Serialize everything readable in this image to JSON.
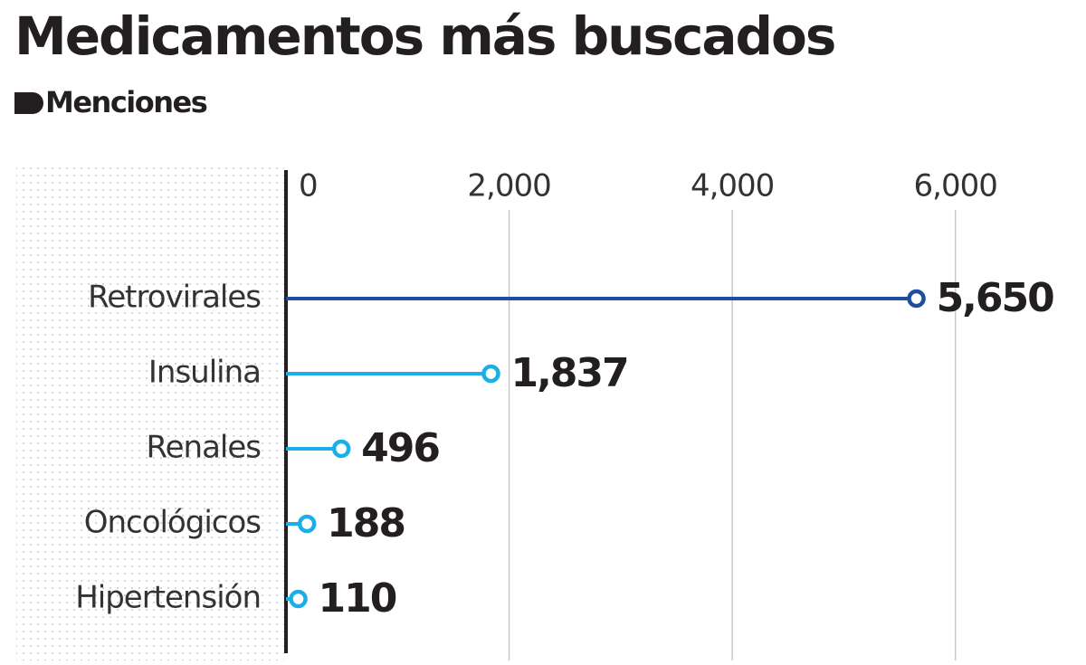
{
  "chart_data": {
    "type": "lollipop",
    "title": "Medicamentos más buscados",
    "subtitle": "Menciones",
    "categories": [
      "Retrovirales",
      "Insulina",
      "Renales",
      "Oncológicos",
      "Hipertensión"
    ],
    "values": [
      5650,
      1837,
      496,
      188,
      110
    ],
    "value_labels": [
      "5,650",
      "1,837",
      "496",
      "188",
      "110"
    ],
    "colors": [
      "#1f4e9c",
      "#1aafe6",
      "#1aafe6",
      "#1aafe6",
      "#1aafe6"
    ],
    "xlim": [
      0,
      7000
    ],
    "xticks": [
      0,
      {
        "value": 2000,
        "label": "2,000"
      },
      {
        "value": 4000,
        "label": "4,000"
      },
      {
        "value": 6000,
        "label": "6,000"
      }
    ],
    "grid": true
  }
}
